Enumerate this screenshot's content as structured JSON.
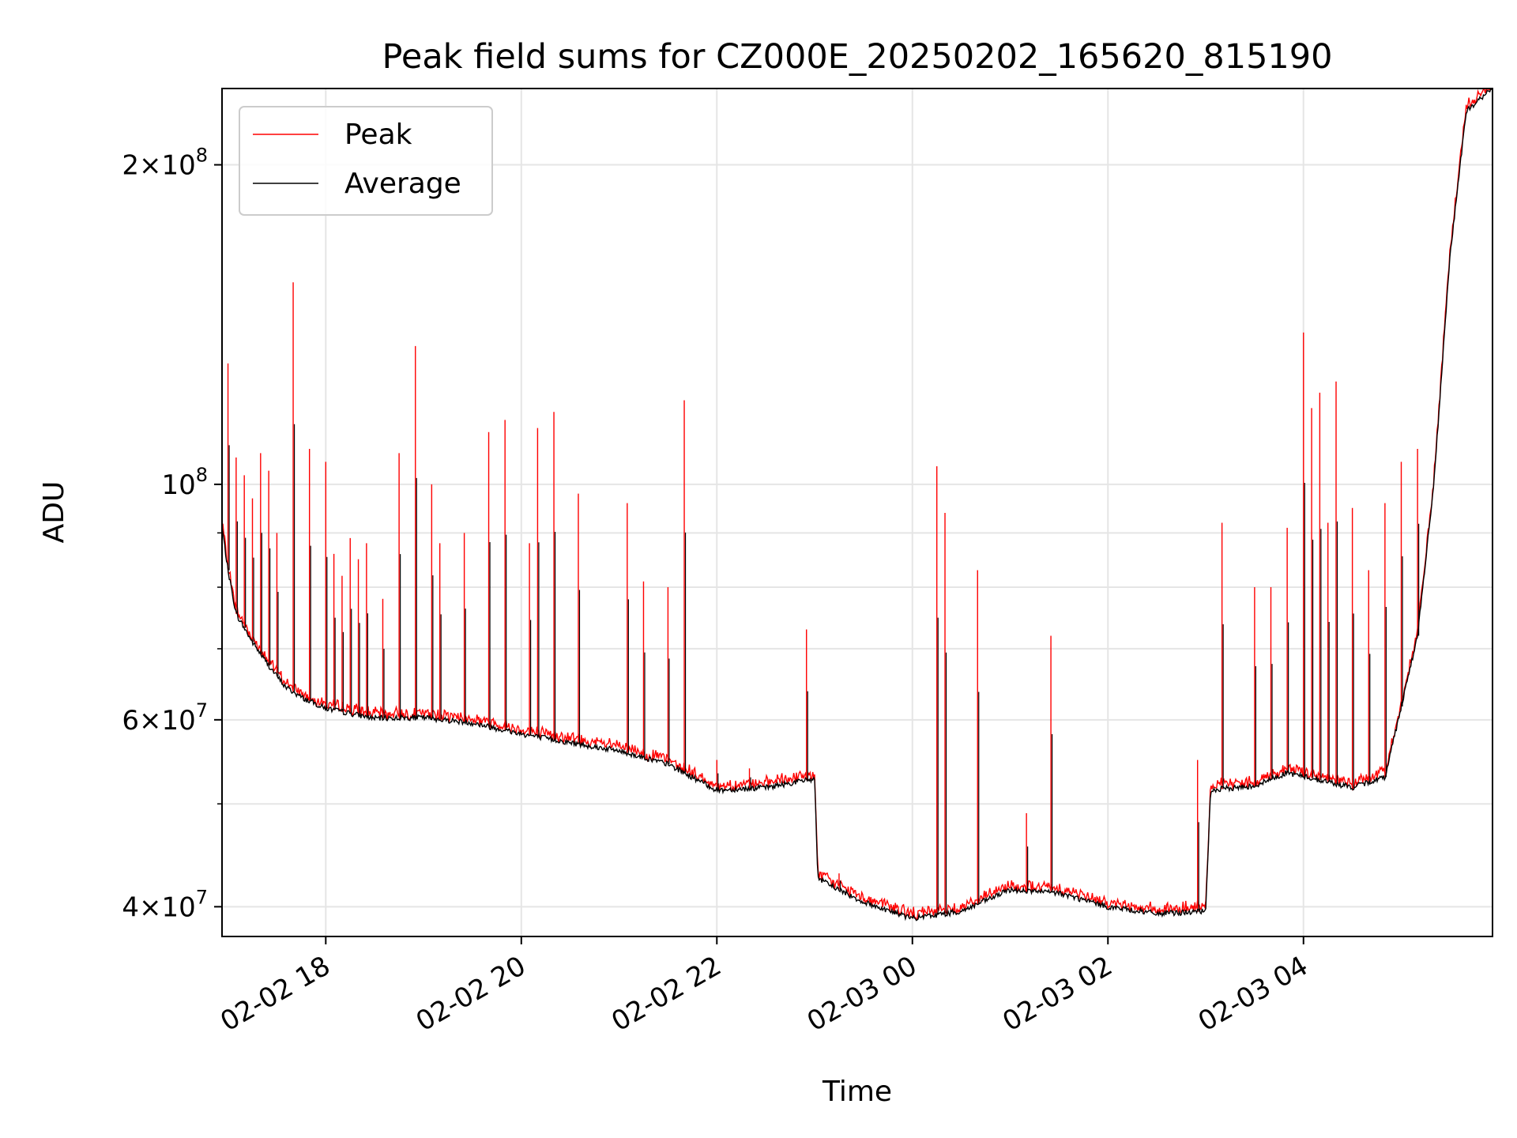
{
  "chart_data": {
    "type": "line",
    "title": "Peak field sums for CZ000E_20250202_165620_815190",
    "xlabel": "Time",
    "ylabel": "ADU",
    "y_scale": "log",
    "xlim": [
      "2025-02-02 16:56:20",
      "2025-02-03 05:56:00"
    ],
    "ylim": [
      37500000,
      236000000
    ],
    "grid": true,
    "legend": "upper left",
    "x_ticks": [
      "02-02 18",
      "02-02 20",
      "02-02 22",
      "02-03 00",
      "02-03 02",
      "02-03 04"
    ],
    "x_tick_times": [
      "2025-02-02 18:00",
      "2025-02-02 20:00",
      "2025-02-02 22:00",
      "2025-02-03 00:00",
      "2025-02-03 02:00",
      "2025-02-03 04:00"
    ],
    "y_major_ticks": [
      {
        "value": 40000000,
        "mantissa": "4",
        "exponent": "7"
      },
      {
        "value": 60000000,
        "mantissa": "6",
        "exponent": "7"
      },
      {
        "value": 100000000,
        "mantissa": "",
        "exponent": "8"
      },
      {
        "value": 200000000,
        "mantissa": "2",
        "exponent": "8"
      }
    ],
    "y_minor_ticks": [
      50000000,
      70000000,
      80000000,
      90000000
    ],
    "series": [
      {
        "name": "Average",
        "color": "#000000",
        "points": [
          [
            "2025-02-02 16:56",
            92000000
          ],
          [
            "2025-02-02 17:00",
            83000000
          ],
          [
            "2025-02-02 17:05",
            75500000
          ],
          [
            "2025-02-02 17:15",
            71000000
          ],
          [
            "2025-02-02 17:25",
            67500000
          ],
          [
            "2025-02-02 17:35",
            64500000
          ],
          [
            "2025-02-02 17:45",
            63000000
          ],
          [
            "2025-02-02 18:00",
            61500000
          ],
          [
            "2025-02-02 18:30",
            60200000
          ],
          [
            "2025-02-02 19:00",
            60300000
          ],
          [
            "2025-02-02 19:30",
            59600000
          ],
          [
            "2025-02-02 20:00",
            58200000
          ],
          [
            "2025-02-02 20:30",
            57100000
          ],
          [
            "2025-02-02 21:00",
            56100000
          ],
          [
            "2025-02-02 21:30",
            54500000
          ],
          [
            "2025-02-02 22:00",
            51500000
          ],
          [
            "2025-02-02 22:30",
            51800000
          ],
          [
            "2025-02-02 23:00",
            52800000
          ],
          [
            "2025-02-02 23:02",
            42500000
          ],
          [
            "2025-02-02 23:30",
            40400000
          ],
          [
            "2025-02-03 00:00",
            39000000
          ],
          [
            "2025-02-03 00:30",
            39600000
          ],
          [
            "2025-02-03 01:00",
            41500000
          ],
          [
            "2025-02-03 01:30",
            41200000
          ],
          [
            "2025-02-03 02:00",
            40000000
          ],
          [
            "2025-02-03 02:30",
            39400000
          ],
          [
            "2025-02-03 03:00",
            39600000
          ],
          [
            "2025-02-03 03:03",
            51500000
          ],
          [
            "2025-02-03 03:30",
            52000000
          ],
          [
            "2025-02-03 03:50",
            53500000
          ],
          [
            "2025-02-03 04:30",
            51800000
          ],
          [
            "2025-02-03 04:50",
            53000000
          ],
          [
            "2025-02-03 05:10",
            72000000
          ],
          [
            "2025-02-03 05:20",
            100000000
          ],
          [
            "2025-02-03 05:30",
            165000000
          ],
          [
            "2025-02-03 05:40",
            225000000
          ],
          [
            "2025-02-03 05:56",
            236000000
          ]
        ]
      },
      {
        "name": "Peak",
        "color": "#ff0000",
        "spikes": [
          [
            "2025-02-02 17:00",
            130000000
          ],
          [
            "2025-02-02 17:05",
            106000000
          ],
          [
            "2025-02-02 17:10",
            102000000
          ],
          [
            "2025-02-02 17:15",
            97000000
          ],
          [
            "2025-02-02 17:20",
            107000000
          ],
          [
            "2025-02-02 17:25",
            103000000
          ],
          [
            "2025-02-02 17:30",
            90000000
          ],
          [
            "2025-02-02 17:40",
            155000000
          ],
          [
            "2025-02-02 17:50",
            108000000
          ],
          [
            "2025-02-02 18:00",
            105000000
          ],
          [
            "2025-02-02 18:05",
            86000000
          ],
          [
            "2025-02-02 18:10",
            82000000
          ],
          [
            "2025-02-02 18:15",
            89000000
          ],
          [
            "2025-02-02 18:20",
            85000000
          ],
          [
            "2025-02-02 18:25",
            88000000
          ],
          [
            "2025-02-02 18:35",
            78000000
          ],
          [
            "2025-02-02 18:45",
            107000000
          ],
          [
            "2025-02-02 18:55",
            135000000
          ],
          [
            "2025-02-02 19:05",
            100000000
          ],
          [
            "2025-02-02 19:10",
            88000000
          ],
          [
            "2025-02-02 19:25",
            90000000
          ],
          [
            "2025-02-02 19:40",
            112000000
          ],
          [
            "2025-02-02 19:50",
            115000000
          ],
          [
            "2025-02-02 20:05",
            88000000
          ],
          [
            "2025-02-02 20:10",
            113000000
          ],
          [
            "2025-02-02 20:20",
            117000000
          ],
          [
            "2025-02-02 20:35",
            98000000
          ],
          [
            "2025-02-02 21:05",
            96000000
          ],
          [
            "2025-02-02 21:15",
            81000000
          ],
          [
            "2025-02-02 21:30",
            80000000
          ],
          [
            "2025-02-02 21:40",
            120000000
          ],
          [
            "2025-02-02 22:00",
            55000000
          ],
          [
            "2025-02-02 22:20",
            54000000
          ],
          [
            "2025-02-02 22:55",
            73000000
          ],
          [
            "2025-02-02 23:15",
            43000000
          ],
          [
            "2025-02-03 00:15",
            104000000
          ],
          [
            "2025-02-03 00:20",
            94000000
          ],
          [
            "2025-02-03 00:40",
            83000000
          ],
          [
            "2025-02-03 01:10",
            49000000
          ],
          [
            "2025-02-03 01:25",
            72000000
          ],
          [
            "2025-02-03 02:55",
            55000000
          ],
          [
            "2025-02-03 03:10",
            92000000
          ],
          [
            "2025-02-03 03:30",
            80000000
          ],
          [
            "2025-02-03 03:40",
            80000000
          ],
          [
            "2025-02-03 03:50",
            91000000
          ],
          [
            "2025-02-03 04:00",
            139000000
          ],
          [
            "2025-02-03 04:05",
            118000000
          ],
          [
            "2025-02-03 04:10",
            122000000
          ],
          [
            "2025-02-03 04:15",
            92000000
          ],
          [
            "2025-02-03 04:20",
            125000000
          ],
          [
            "2025-02-03 04:30",
            95000000
          ],
          [
            "2025-02-03 04:40",
            83000000
          ],
          [
            "2025-02-03 04:50",
            96000000
          ],
          [
            "2025-02-03 05:00",
            105000000
          ],
          [
            "2025-02-03 05:10",
            108000000
          ]
        ]
      }
    ]
  }
}
